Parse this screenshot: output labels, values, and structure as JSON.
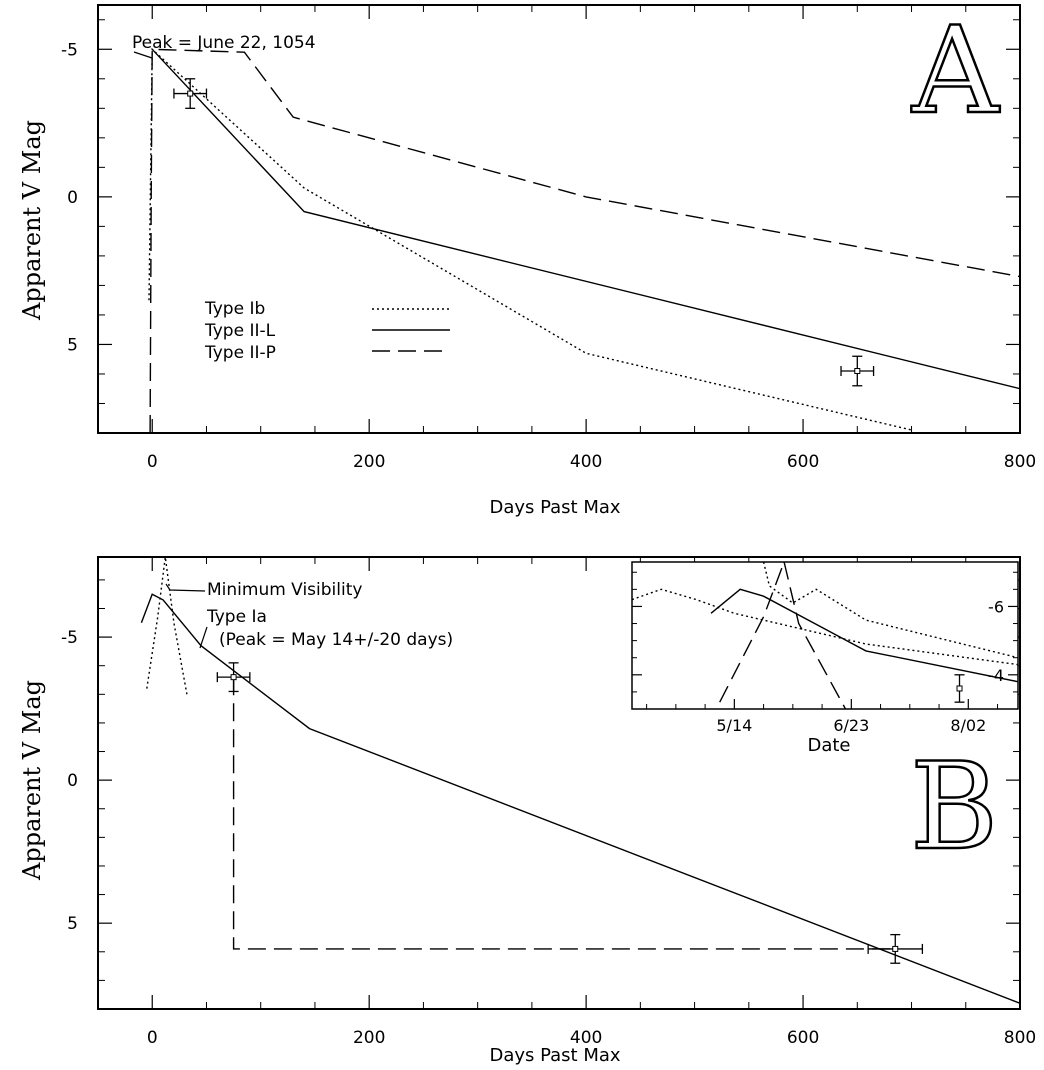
{
  "chart_data": [
    {
      "type": "line",
      "panel_letter": "A",
      "xlabel": "Days Past Max",
      "ylabel": "Apparent V Mag",
      "xlim": [
        -50,
        800
      ],
      "ylim": [
        8,
        -6.5
      ],
      "y_inverted": true,
      "x_ticks": [
        0,
        200,
        400,
        600,
        800
      ],
      "y_ticks": [
        -5,
        0,
        5
      ],
      "x_tick_labels": [
        "0",
        "200",
        "400",
        "600",
        "800"
      ],
      "y_tick_labels": [
        "-5",
        "0",
        "5"
      ],
      "legend_placement": "lower-left",
      "series": [
        {
          "name": "Type Ib",
          "style": "dotted",
          "points": [
            [
              -3,
              3.5
            ],
            [
              0,
              -5
            ],
            [
              140,
              -0.3
            ],
            [
              400,
              5.3
            ],
            [
              700,
              7.9
            ]
          ]
        },
        {
          "name": "Type II-L",
          "style": "solid",
          "points": [
            [
              0,
              -5
            ],
            [
              140,
              0.5
            ],
            [
              800,
              6.5
            ]
          ]
        },
        {
          "name": "Type II-P",
          "style": "dashed",
          "points": [
            [
              -2,
              8
            ],
            [
              -1,
              0
            ],
            [
              0,
              -5
            ],
            [
              85,
              -4.9
            ],
            [
              130,
              -2.7
            ],
            [
              400,
              0
            ],
            [
              800,
              2.7
            ]
          ]
        }
      ],
      "error_points": [
        {
          "x": 35,
          "y": -3.5,
          "xerr": 15,
          "yerr": 0.5
        },
        {
          "x": 650,
          "y": 5.9,
          "xerr": 15,
          "yerr": 0.5
        }
      ],
      "annotations": [
        {
          "text": "Peak = June 22, 1054",
          "x": 0,
          "y": -5
        }
      ]
    },
    {
      "type": "line",
      "panel_letter": "B",
      "xlabel": "Days Past Max",
      "ylabel": "Apparent V Mag",
      "xlim": [
        -50,
        800
      ],
      "ylim": [
        8,
        -7.8
      ],
      "y_inverted": true,
      "x_ticks": [
        0,
        200,
        400,
        600,
        800
      ],
      "y_ticks": [
        -5,
        0,
        5
      ],
      "x_tick_labels": [
        "0",
        "200",
        "400",
        "600",
        "800"
      ],
      "y_tick_labels": [
        "-5",
        "0",
        "5"
      ],
      "series": [
        {
          "style": "solid",
          "points": [
            [
              -10,
              -5.5
            ],
            [
              0,
              -6.5
            ],
            [
              10,
              -6.3
            ],
            [
              45,
              -4.7
            ],
            [
              145,
              -1.8
            ],
            [
              800,
              7.8
            ]
          ]
        },
        {
          "style": "dotted",
          "points": [
            [
              -5,
              -3.2
            ],
            [
              5,
              -5.7
            ],
            [
              12,
              -7.8
            ],
            [
              20,
              -5.5
            ],
            [
              32,
              -3
            ]
          ]
        },
        {
          "style": "dashed",
          "points": [
            [
              75,
              -3.6
            ],
            [
              75,
              5.9
            ],
            [
              680,
              5.9
            ]
          ]
        }
      ],
      "error_points": [
        {
          "x": 75,
          "y": -3.6,
          "xerr": 15,
          "yerr": 0.5
        },
        {
          "x": 685,
          "y": 5.9,
          "xerr": 25,
          "yerr": 0.5
        }
      ],
      "annotations": [
        {
          "text": "Minimum Visibility"
        },
        {
          "text": "Type Ia"
        },
        {
          "text": "(Peak = May 14+/-20 days)"
        }
      ]
    },
    {
      "type": "line",
      "panel": "inset",
      "xlabel": "Date",
      "x_tick_labels": [
        "5/14",
        "6/23",
        "8/02"
      ],
      "y_tick_labels": [
        "-6",
        "-4"
      ],
      "x_ticks_days": [
        0,
        40,
        80
      ],
      "xlim_days": [
        -35,
        97
      ],
      "ylim": [
        -3,
        -7.3
      ],
      "y_ticks": [
        -6,
        -4
      ],
      "series": [
        {
          "style": "solid",
          "points": [
            [
              -8,
              -5.8
            ],
            [
              2,
              -6.5
            ],
            [
              10,
              -6.3
            ],
            [
              45,
              -4.7
            ],
            [
              97,
              -3.8
            ]
          ]
        },
        {
          "style": "dotted",
          "points": [
            [
              -35,
              -6.2
            ],
            [
              -25,
              -6.5
            ],
            [
              -13,
              -6.2
            ],
            [
              0,
              -5.8
            ],
            [
              45,
              -4.9
            ],
            [
              97,
              -4.3
            ]
          ]
        },
        {
          "style": "dotted",
          "points": [
            [
              10,
              -7.3
            ],
            [
              12,
              -6.6
            ],
            [
              20,
              -6.1
            ],
            [
              28,
              -6.5
            ],
            [
              45,
              -5.6
            ],
            [
              97,
              -4.5
            ]
          ]
        },
        {
          "style": "dashed",
          "points": [
            [
              -5,
              -3.2
            ],
            [
              10,
              -5.7
            ],
            [
              17,
              -7.3
            ]
          ]
        },
        {
          "style": "dashed",
          "points": [
            [
              17,
              -7.3
            ],
            [
              22,
              -5.5
            ],
            [
              38,
              -3
            ]
          ]
        }
      ],
      "error_points": [
        {
          "x": 77,
          "y": -3.6,
          "xerr": 0,
          "yerr": 0.4
        }
      ]
    }
  ]
}
